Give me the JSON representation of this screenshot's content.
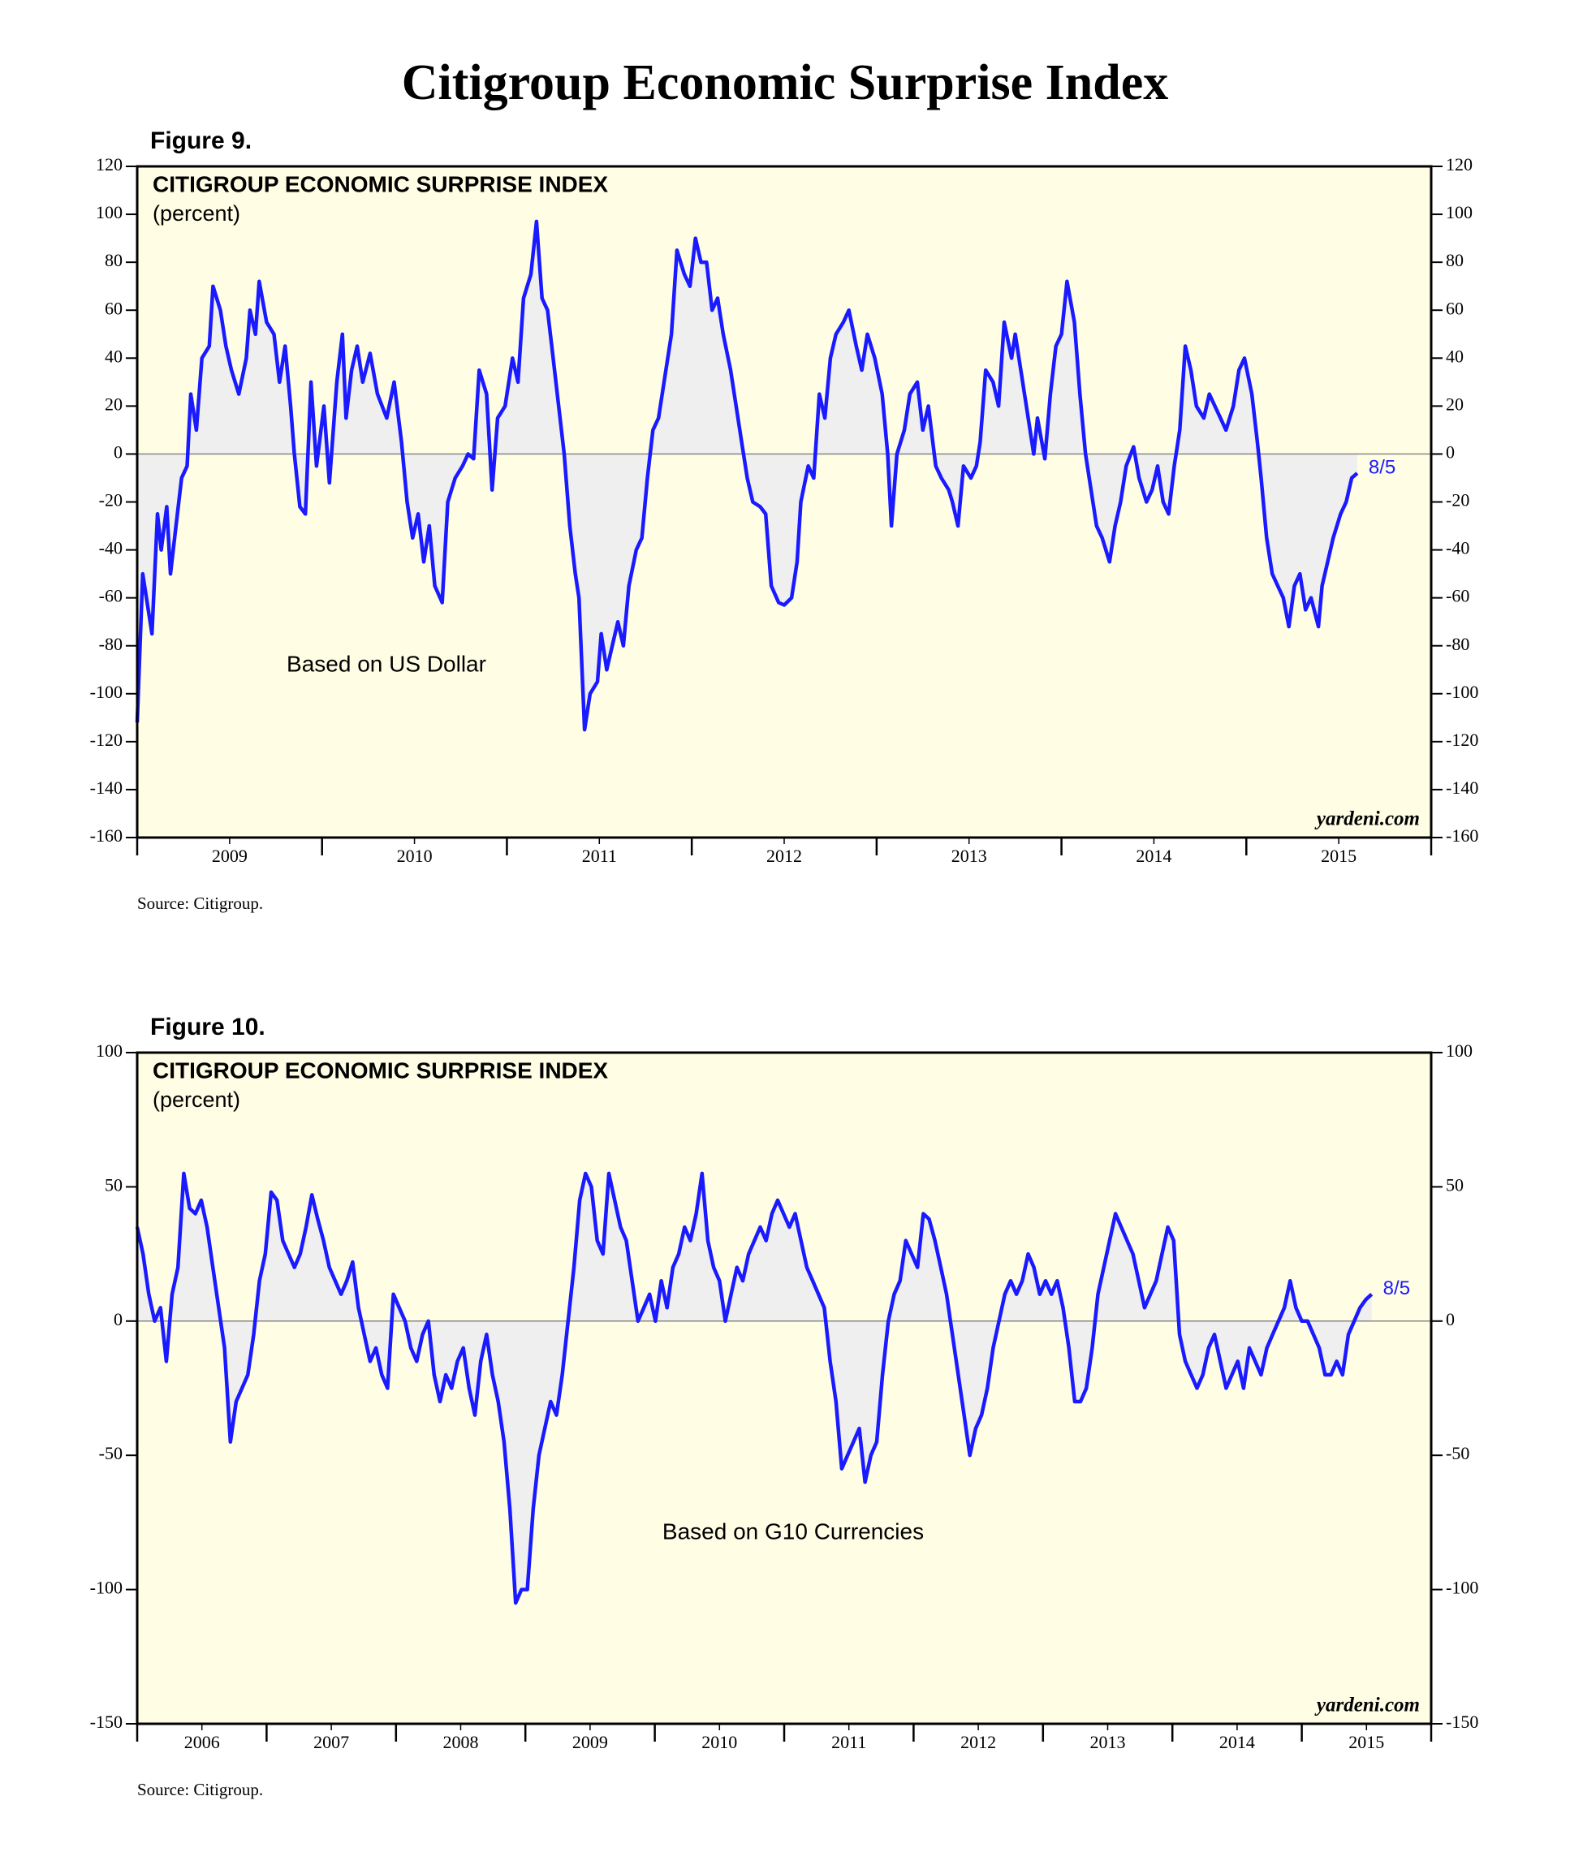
{
  "title": "Citigroup Economic Surprise Index",
  "chart_data": [
    {
      "type": "line",
      "figure_label": "Figure 9.",
      "title": "CITIGROUP ECONOMIC SURPRISE INDEX",
      "subtitle": "(percent)",
      "annotation": "Based on US Dollar",
      "watermark": "yardeni.com",
      "source": "Source: Citigroup.",
      "end_label": "8/5",
      "color": "#1a1aff",
      "fill_color": "#efefef",
      "background": "#fffde4",
      "zero_line": true,
      "xlim": [
        2009,
        2016
      ],
      "ylim": [
        -160,
        120
      ],
      "yticks": [
        -160,
        -140,
        -120,
        -100,
        -80,
        -60,
        -40,
        -20,
        0,
        20,
        40,
        60,
        80,
        100,
        120
      ],
      "xticks": [
        {
          "value": 2009.5,
          "label": "2009"
        },
        {
          "value": 2010.5,
          "label": "2010"
        },
        {
          "value": 2011.5,
          "label": "2011"
        },
        {
          "value": 2012.5,
          "label": "2012"
        },
        {
          "value": 2013.5,
          "label": "2013"
        },
        {
          "value": 2014.5,
          "label": "2014"
        },
        {
          "value": 2015.5,
          "label": "2015"
        }
      ],
      "x": [
        2009.0,
        2009.03,
        2009.08,
        2009.11,
        2009.13,
        2009.16,
        2009.18,
        2009.21,
        2009.24,
        2009.27,
        2009.29,
        2009.32,
        2009.35,
        2009.39,
        2009.41,
        2009.45,
        2009.48,
        2009.51,
        2009.55,
        2009.59,
        2009.61,
        2009.64,
        2009.66,
        2009.7,
        2009.74,
        2009.77,
        2009.8,
        2009.83,
        2009.85,
        2009.88,
        2009.91,
        2009.94,
        2009.97,
        2010.01,
        2010.04,
        2010.08,
        2010.11,
        2010.13,
        2010.16,
        2010.19,
        2010.22,
        2010.26,
        2010.3,
        2010.35,
        2010.39,
        2010.43,
        2010.46,
        2010.49,
        2010.52,
        2010.55,
        2010.58,
        2010.61,
        2010.65,
        2010.68,
        2010.72,
        2010.76,
        2010.79,
        2010.82,
        2010.85,
        2010.89,
        2010.92,
        2010.95,
        2010.99,
        2011.03,
        2011.06,
        2011.09,
        2011.13,
        2011.16,
        2011.19,
        2011.22,
        2011.25,
        2011.28,
        2011.31,
        2011.34,
        2011.37,
        2011.39,
        2011.42,
        2011.45,
        2011.49,
        2011.51,
        2011.54,
        2011.57,
        2011.6,
        2011.63,
        2011.66,
        2011.7,
        2011.73,
        2011.76,
        2011.79,
        2011.82,
        2011.85,
        2011.89,
        2011.92,
        2011.96,
        2011.99,
        2012.02,
        2012.05,
        2012.08,
        2012.11,
        2012.14,
        2012.17,
        2012.21,
        2012.24,
        2012.27,
        2012.3,
        2012.33,
        2012.37,
        2012.4,
        2012.43,
        2012.47,
        2012.5,
        2012.54,
        2012.57,
        2012.59,
        2012.63,
        2012.66,
        2012.69,
        2012.72,
        2012.75,
        2012.78,
        2012.82,
        2012.85,
        2012.89,
        2012.92,
        2012.95,
        2012.99,
        2013.03,
        2013.06,
        2013.08,
        2013.11,
        2013.15,
        2013.18,
        2013.22,
        2013.25,
        2013.28,
        2013.32,
        2013.35,
        2013.39,
        2013.41,
        2013.44,
        2013.47,
        2013.51,
        2013.54,
        2013.56,
        2013.59,
        2013.63,
        2013.66,
        2013.69,
        2013.73,
        2013.75,
        2013.78,
        2013.82,
        2013.85,
        2013.87,
        2013.91,
        2013.94,
        2013.97,
        2014.0,
        2014.03,
        2014.07,
        2014.1,
        2014.13,
        2014.16,
        2014.19,
        2014.22,
        2014.26,
        2014.29,
        2014.32,
        2014.35,
        2014.39,
        2014.42,
        2014.46,
        2014.49,
        2014.52,
        2014.55,
        2014.58,
        2014.61,
        2014.64,
        2014.67,
        2014.7,
        2014.73,
        2014.77,
        2014.8,
        2014.83,
        2014.86,
        2014.89,
        2014.93,
        2014.96,
        2014.99,
        2015.03,
        2015.06,
        2015.08,
        2015.11,
        2015.14,
        2015.17,
        2015.2,
        2015.23,
        2015.26,
        2015.29,
        2015.32,
        2015.35,
        2015.39,
        2015.41,
        2015.44,
        2015.47,
        2015.51,
        2015.54,
        2015.57,
        2015.6
      ],
      "values": [
        -112,
        -50,
        -75,
        -25,
        -40,
        -22,
        -50,
        -30,
        -10,
        -5,
        25,
        10,
        40,
        45,
        70,
        60,
        45,
        35,
        25,
        40,
        60,
        50,
        72,
        55,
        50,
        30,
        45,
        20,
        0,
        -22,
        -25,
        30,
        -5,
        20,
        -12,
        30,
        50,
        15,
        35,
        45,
        30,
        42,
        25,
        15,
        30,
        5,
        -20,
        -35,
        -25,
        -45,
        -30,
        -55,
        -62,
        -20,
        -10,
        -5,
        0,
        -2,
        35,
        25,
        -15,
        15,
        20,
        40,
        30,
        65,
        75,
        97,
        65,
        60,
        40,
        20,
        0,
        -30,
        -50,
        -60,
        -115,
        -100,
        -95,
        -75,
        -90,
        -80,
        -70,
        -80,
        -55,
        -40,
        -35,
        -10,
        10,
        15,
        30,
        50,
        85,
        75,
        70,
        90,
        80,
        80,
        60,
        65,
        50,
        35,
        20,
        5,
        -10,
        -20,
        -22,
        -25,
        -55,
        -62,
        -63,
        -60,
        -45,
        -20,
        -5,
        -10,
        25,
        15,
        40,
        50,
        55,
        60,
        45,
        35,
        50,
        40,
        25,
        0,
        -30,
        0,
        10,
        25,
        30,
        10,
        20,
        -5,
        -10,
        -15,
        -20,
        -30,
        -5,
        -10,
        -5,
        5,
        35,
        30,
        20,
        55,
        40,
        50,
        35,
        15,
        0,
        15,
        -2,
        25,
        45,
        50,
        72,
        55,
        25,
        0,
        -15,
        -30,
        -35,
        -45,
        -30,
        -20,
        -5,
        3,
        -10,
        -20,
        -15,
        -5,
        -20,
        -25,
        -5,
        10,
        45,
        35,
        20,
        15,
        25,
        20,
        15,
        10,
        20,
        35,
        40,
        25,
        5,
        -10,
        -35,
        -50,
        -55,
        -60,
        -72,
        -55,
        -50,
        -65,
        -60,
        -72,
        -55,
        -45,
        -35,
        -25,
        -20,
        -10,
        -8
      ]
    },
    {
      "type": "line",
      "figure_label": "Figure 10.",
      "title": "CITIGROUP ECONOMIC SURPRISE INDEX",
      "subtitle": "(percent)",
      "annotation": "Based on G10 Currencies",
      "watermark": "yardeni.com",
      "source": "Source: Citigroup.",
      "end_label": "8/5",
      "color": "#1a1aff",
      "fill_color": "#efefef",
      "background": "#fffde4",
      "zero_line": true,
      "xlim": [
        2006,
        2016
      ],
      "ylim": [
        -150,
        100
      ],
      "yticks": [
        -150,
        -100,
        -50,
        0,
        50,
        100
      ],
      "xticks": [
        {
          "value": 2006.5,
          "label": "2006"
        },
        {
          "value": 2007.5,
          "label": "2007"
        },
        {
          "value": 2008.5,
          "label": "2008"
        },
        {
          "value": 2009.5,
          "label": "2009"
        },
        {
          "value": 2010.5,
          "label": "2010"
        },
        {
          "value": 2011.5,
          "label": "2011"
        },
        {
          "value": 2012.5,
          "label": "2012"
        },
        {
          "value": 2013.5,
          "label": "2013"
        },
        {
          "value": 2014.5,
          "label": "2014"
        },
        {
          "value": 2015.5,
          "label": "2015"
        }
      ],
      "x": [
        2006,
        2006.045,
        2006.09,
        2006.135,
        2006.18,
        2006.225,
        2006.27,
        2006.315,
        2006.36,
        2006.405,
        2006.45,
        2006.495,
        2006.54,
        2006.585,
        2006.63,
        2006.675,
        2006.72,
        2006.765,
        2006.81,
        2006.855,
        2006.9,
        2006.945,
        2006.99,
        2007.035,
        2007.08,
        2007.125,
        2007.17,
        2007.215,
        2007.26,
        2007.305,
        2007.35,
        2007.395,
        2007.44,
        2007.485,
        2007.53,
        2007.575,
        2007.62,
        2007.665,
        2007.71,
        2007.755,
        2007.8,
        2007.845,
        2007.89,
        2007.935,
        2007.98,
        2008.025,
        2008.07,
        2008.115,
        2008.16,
        2008.205,
        2008.25,
        2008.295,
        2008.34,
        2008.385,
        2008.43,
        2008.475,
        2008.52,
        2008.565,
        2008.61,
        2008.655,
        2008.7,
        2008.745,
        2008.79,
        2008.835,
        2008.88,
        2008.925,
        2008.97,
        2009.015,
        2009.06,
        2009.105,
        2009.15,
        2009.195,
        2009.24,
        2009.285,
        2009.33,
        2009.375,
        2009.42,
        2009.465,
        2009.51,
        2009.555,
        2009.6,
        2009.645,
        2009.69,
        2009.735,
        2009.78,
        2009.825,
        2009.87,
        2009.915,
        2009.96,
        2010.005,
        2010.05,
        2010.095,
        2010.14,
        2010.185,
        2010.23,
        2010.275,
        2010.32,
        2010.365,
        2010.41,
        2010.455,
        2010.5,
        2010.545,
        2010.59,
        2010.635,
        2010.68,
        2010.725,
        2010.77,
        2010.815,
        2010.86,
        2010.905,
        2010.95,
        2010.995,
        2011.04,
        2011.085,
        2011.13,
        2011.175,
        2011.22,
        2011.265,
        2011.31,
        2011.355,
        2011.4,
        2011.445,
        2011.49,
        2011.535,
        2011.58,
        2011.625,
        2011.67,
        2011.715,
        2011.76,
        2011.805,
        2011.85,
        2011.895,
        2011.94,
        2011.985,
        2012.03,
        2012.075,
        2012.12,
        2012.165,
        2012.21,
        2012.255,
        2012.3,
        2012.345,
        2012.39,
        2012.435,
        2012.48,
        2012.525,
        2012.57,
        2012.615,
        2012.66,
        2012.705,
        2012.75,
        2012.795,
        2012.84,
        2012.885,
        2012.93,
        2012.975,
        2013.02,
        2013.065,
        2013.11,
        2013.155,
        2013.2,
        2013.245,
        2013.29,
        2013.335,
        2013.38,
        2013.425,
        2013.47,
        2013.515,
        2013.56,
        2013.605,
        2013.65,
        2013.695,
        2013.74,
        2013.785,
        2013.83,
        2013.875,
        2013.92,
        2013.965,
        2014.01,
        2014.055,
        2014.1,
        2014.145,
        2014.19,
        2014.235,
        2014.28,
        2014.325,
        2014.37,
        2014.415,
        2014.46,
        2014.505,
        2014.55,
        2014.595,
        2014.64,
        2014.685,
        2014.73,
        2014.775,
        2014.82,
        2014.865,
        2014.91,
        2014.955,
        2015,
        2015.045,
        2015.09,
        2015.135,
        2015.18,
        2015.225,
        2015.27,
        2015.315,
        2015.36,
        2015.405,
        2015.45,
        2015.495,
        2015.54
      ],
      "values": [
        35,
        25,
        10,
        0,
        5,
        -15,
        10,
        20,
        55,
        42,
        40,
        45,
        35,
        20,
        5,
        -10,
        -45,
        -30,
        -25,
        -20,
        -5,
        15,
        25,
        48,
        45,
        30,
        25,
        20,
        25,
        35,
        47,
        38,
        30,
        20,
        15,
        10,
        15,
        22,
        5,
        -5,
        -15,
        -10,
        -20,
        -25,
        10,
        5,
        0,
        -10,
        -15,
        -5,
        0,
        -20,
        -30,
        -20,
        -25,
        -15,
        -10,
        -25,
        -35,
        -15,
        -5,
        -20,
        -30,
        -45,
        -70,
        -105,
        -100,
        -100,
        -70,
        -50,
        -40,
        -30,
        -35,
        -20,
        0,
        20,
        45,
        55,
        50,
        30,
        25,
        55,
        45,
        35,
        30,
        15,
        0,
        5,
        10,
        0,
        15,
        5,
        20,
        25,
        35,
        30,
        40,
        55,
        30,
        20,
        15,
        0,
        10,
        20,
        15,
        25,
        30,
        35,
        30,
        40,
        45,
        40,
        35,
        40,
        30,
        20,
        15,
        10,
        5,
        -15,
        -30,
        -55,
        -50,
        -45,
        -40,
        -60,
        -50,
        -45,
        -20,
        0,
        10,
        15,
        30,
        25,
        20,
        40,
        38,
        30,
        20,
        10,
        -5,
        -20,
        -35,
        -50,
        -40,
        -35,
        -25,
        -10,
        0,
        10,
        15,
        10,
        15,
        25,
        20,
        10,
        15,
        10,
        15,
        5,
        -10,
        -30,
        -30,
        -25,
        -10,
        10,
        20,
        30,
        40,
        35,
        30,
        25,
        15,
        5,
        10,
        15,
        25,
        35,
        30,
        -5,
        -15,
        -20,
        -25,
        -20,
        -10,
        -5,
        -15,
        -25,
        -20,
        -15,
        -25,
        -10,
        -15,
        -20,
        -10,
        -5,
        0,
        5,
        15,
        5,
        0,
        0,
        -5,
        -10,
        -20,
        -20,
        -15,
        -20,
        -5,
        0,
        5,
        8,
        10
      ]
    }
  ]
}
